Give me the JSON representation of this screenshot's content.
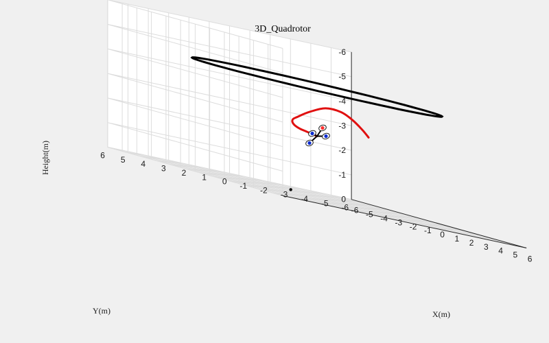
{
  "chart_data": {
    "type": "3d-line",
    "title": "3D_Quadrotor",
    "xlabel": "X(m)",
    "ylabel": "Y(m)",
    "zlabel": "Height(m)",
    "xlim": [
      -6,
      6
    ],
    "ylim": [
      -6,
      6
    ],
    "zlim": [
      -6,
      0
    ],
    "z_direction": "reverse",
    "grid": true,
    "x_ticks": [
      "-6",
      "-5",
      "-4",
      "-3",
      "-2",
      "-1",
      "0",
      "1",
      "2",
      "3",
      "4",
      "5",
      "6"
    ],
    "y_ticks": [
      "-6",
      "-5",
      "-4",
      "-3",
      "-2",
      "-1",
      "0",
      "1",
      "2",
      "3",
      "4",
      "5",
      "6"
    ],
    "z_ticks": [
      "-6",
      "-5",
      "-4",
      "-3",
      "-2",
      "-1",
      "0"
    ],
    "series": [
      {
        "kind": "reference-circle",
        "color": "#000000",
        "center": [
          0,
          0,
          -4.5
        ],
        "radius": 5
      },
      {
        "kind": "flown-trajectory",
        "color": "#e01010",
        "points": [
          [
            0.0,
            0.0,
            -2.5
          ],
          [
            -0.9,
            -0.2,
            -2.55
          ],
          [
            -1.8,
            -0.4,
            -2.6
          ],
          [
            -2.6,
            -0.7,
            -2.7
          ],
          [
            -3.2,
            -1.1,
            -2.85
          ],
          [
            -3.4,
            -1.5,
            -3.0
          ],
          [
            -3.3,
            -2.0,
            -3.3
          ],
          [
            -2.9,
            -2.5,
            -3.6
          ],
          [
            -2.4,
            -2.9,
            -3.6
          ],
          [
            -1.9,
            -3.1,
            -3.4
          ],
          [
            -1.5,
            -3.3,
            -3.1
          ],
          [
            -1.2,
            -3.4,
            -2.85
          ]
        ]
      },
      {
        "kind": "start-point",
        "color": "#000000",
        "point": [
          -2.5,
          -0.5,
          0
        ]
      }
    ],
    "vehicle": {
      "position": [
        0,
        0,
        -2.5
      ],
      "rotor_colors": [
        "#ff3030",
        "#0a2bd0",
        "#0a2bd0",
        "#0a2bd0"
      ]
    }
  }
}
